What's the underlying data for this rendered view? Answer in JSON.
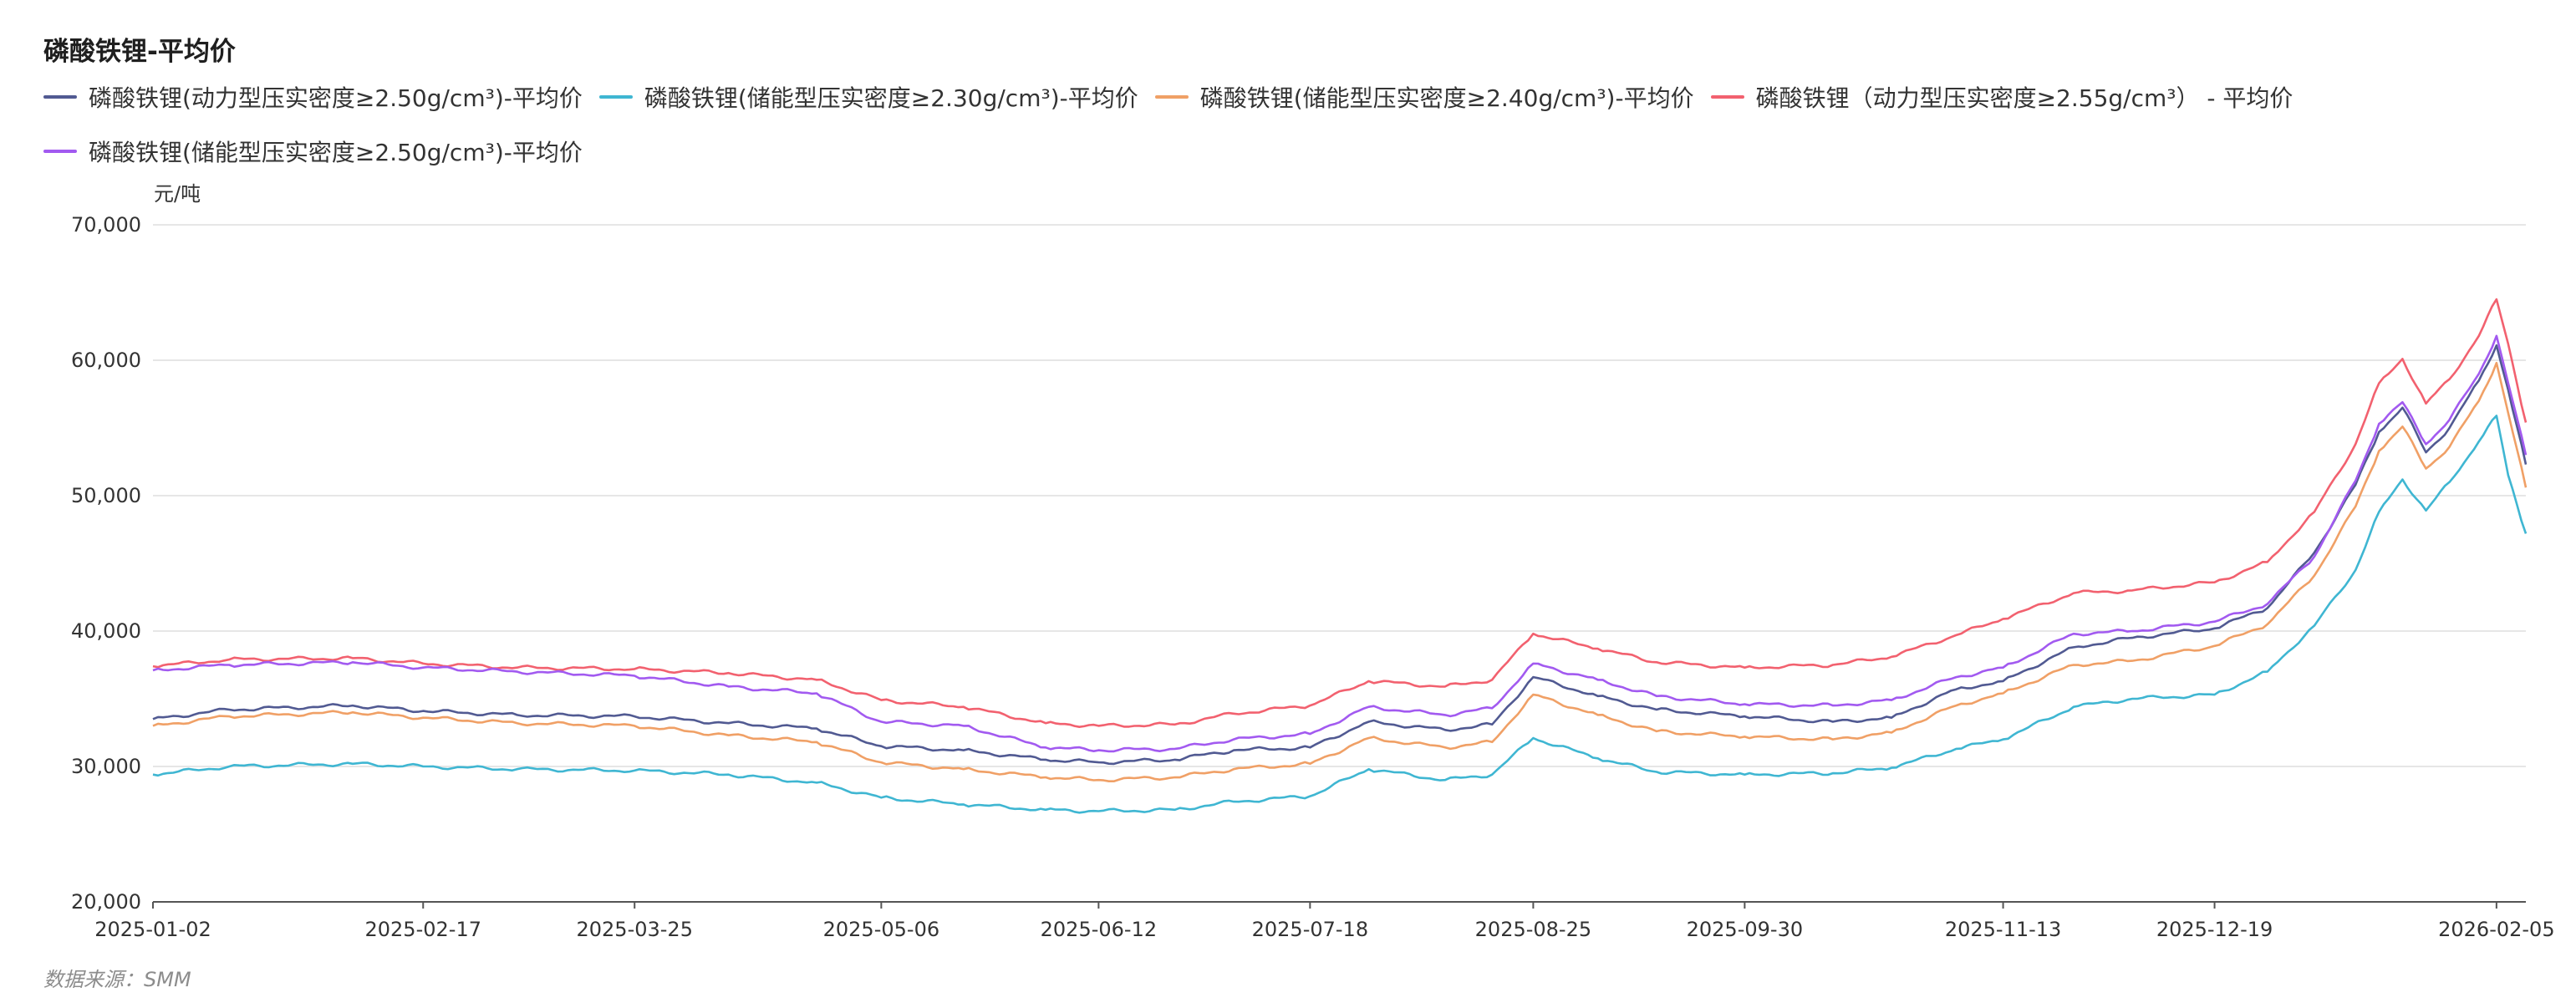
{
  "title": "磷酸铁锂-平均价",
  "unit": "元/吨",
  "source": "数据来源：SMM",
  "legend_rows": [
    [
      {
        "label": "磷酸铁锂(动力型压实密度≥2.50g/cm³)-平均价",
        "color": "#515a92"
      },
      {
        "label": "磷酸铁锂(储能型压实密度≥2.30g/cm³)-平均价",
        "color": "#3fb6d2"
      },
      {
        "label": "磷酸铁锂(储能型压实密度≥2.40g/cm³)-平均价",
        "color": "#f0a066"
      },
      {
        "label": "磷酸铁锂（动力型压实密度≥2.55g/cm³） - 平均价",
        "color": "#f2616f"
      }
    ],
    [
      {
        "label": "磷酸铁锂(储能型压实密度≥2.50g/cm³)-平均价",
        "color": "#a25af0"
      }
    ]
  ],
  "chart_data": {
    "type": "line",
    "title": "磷酸铁锂-平均价",
    "ylabel": "元/吨",
    "ylim": [
      20000,
      70000
    ],
    "yticks": [
      "20,000",
      "30,000",
      "40,000",
      "50,000",
      "60,000",
      "70,000"
    ],
    "ytick_values": [
      20000,
      30000,
      40000,
      50000,
      60000,
      70000
    ],
    "xlim": [
      "2025-01-02",
      "2026-02-10"
    ],
    "xticks": [
      "2025-01-02",
      "2025-02-17",
      "2025-03-25",
      "2025-05-06",
      "2025-06-12",
      "2025-07-18",
      "2025-08-25",
      "2025-09-30",
      "2025-11-13",
      "2025-12-19",
      "2026-02-05"
    ],
    "grid": true,
    "legend_position": "top-left",
    "x": [
      "2025-01-02",
      "2025-01-15",
      "2025-02-05",
      "2025-02-17",
      "2025-03-05",
      "2025-03-25",
      "2025-04-10",
      "2025-04-25",
      "2025-05-06",
      "2025-05-20",
      "2025-06-03",
      "2025-06-12",
      "2025-06-25",
      "2025-07-05",
      "2025-07-18",
      "2025-07-28",
      "2025-08-10",
      "2025-08-18",
      "2025-08-25",
      "2025-09-05",
      "2025-09-15",
      "2025-09-30",
      "2025-10-15",
      "2025-10-25",
      "2025-11-05",
      "2025-11-13",
      "2025-11-25",
      "2025-12-05",
      "2025-12-19",
      "2025-12-28",
      "2026-01-05",
      "2026-01-12",
      "2026-01-16",
      "2026-01-20",
      "2026-01-24",
      "2026-01-28",
      "2026-02-02",
      "2026-02-05",
      "2026-02-07",
      "2026-02-10"
    ],
    "series": [
      {
        "name": "磷酸铁锂(动力型压实密度≥2.50g/cm³)-平均价",
        "color": "#515a92",
        "values": [
          33500,
          34200,
          34500,
          34100,
          33800,
          33700,
          33200,
          32800,
          31500,
          31200,
          30500,
          30300,
          30500,
          31200,
          31400,
          33300,
          32700,
          33100,
          36600,
          35200,
          34200,
          33700,
          33300,
          33600,
          35700,
          36300,
          38800,
          39500,
          40200,
          41700,
          45800,
          50800,
          54700,
          56500,
          53200,
          55000,
          58500,
          61100,
          57800,
          52300
        ]
      },
      {
        "name": "磷酸铁锂(储能型压实密度≥2.30g/cm³)-平均价",
        "color": "#3fb6d2",
        "values": [
          29400,
          30000,
          30200,
          30000,
          29800,
          29700,
          29400,
          28800,
          27700,
          27200,
          26800,
          26700,
          26800,
          27400,
          27800,
          29800,
          29000,
          29400,
          32100,
          30600,
          29600,
          29400,
          29500,
          29900,
          31300,
          32000,
          34400,
          35000,
          35300,
          37000,
          40400,
          44500,
          48800,
          51200,
          48900,
          51000,
          54000,
          55900,
          51500,
          47200
        ]
      },
      {
        "name": "磷酸铁锂(储能型压实密度≥2.40g/cm³)-平均价",
        "color": "#f0a066",
        "values": [
          33000,
          33700,
          34000,
          33600,
          33200,
          33000,
          32300,
          31800,
          30300,
          29800,
          29200,
          29000,
          29200,
          29800,
          30200,
          32100,
          31400,
          31800,
          35300,
          33800,
          32600,
          32200,
          32000,
          32500,
          34500,
          35400,
          37500,
          37800,
          38900,
          40500,
          44100,
          49200,
          53300,
          55100,
          52000,
          53600,
          57000,
          59800,
          56100,
          50600
        ]
      },
      {
        "name": "磷酸铁锂（动力型压实密度≥2.55g/cm³） - 平均价",
        "color": "#f2616f",
        "values": [
          37400,
          37900,
          38000,
          37600,
          37300,
          37200,
          36900,
          36400,
          34900,
          34400,
          33200,
          33000,
          33100,
          33900,
          34500,
          36300,
          35900,
          36400,
          39800,
          38700,
          37700,
          37300,
          37500,
          38100,
          39700,
          40900,
          42800,
          43000,
          43600,
          45100,
          48800,
          53800,
          58300,
          60100,
          56800,
          58600,
          61800,
          64500,
          61200,
          55400
        ]
      },
      {
        "name": "磷酸铁锂(储能型压实密度≥2.50g/cm³)-平均价",
        "color": "#a25af0",
        "values": [
          37100,
          37500,
          37700,
          37300,
          37000,
          36700,
          35900,
          35400,
          33300,
          33000,
          31400,
          31200,
          31300,
          32000,
          32400,
          34400,
          33800,
          34300,
          37600,
          36400,
          35200,
          34600,
          34500,
          34900,
          36600,
          37300,
          39800,
          40000,
          40700,
          42000,
          45500,
          51100,
          55300,
          56900,
          53800,
          55600,
          59000,
          61800,
          58300,
          53000
        ]
      }
    ]
  }
}
